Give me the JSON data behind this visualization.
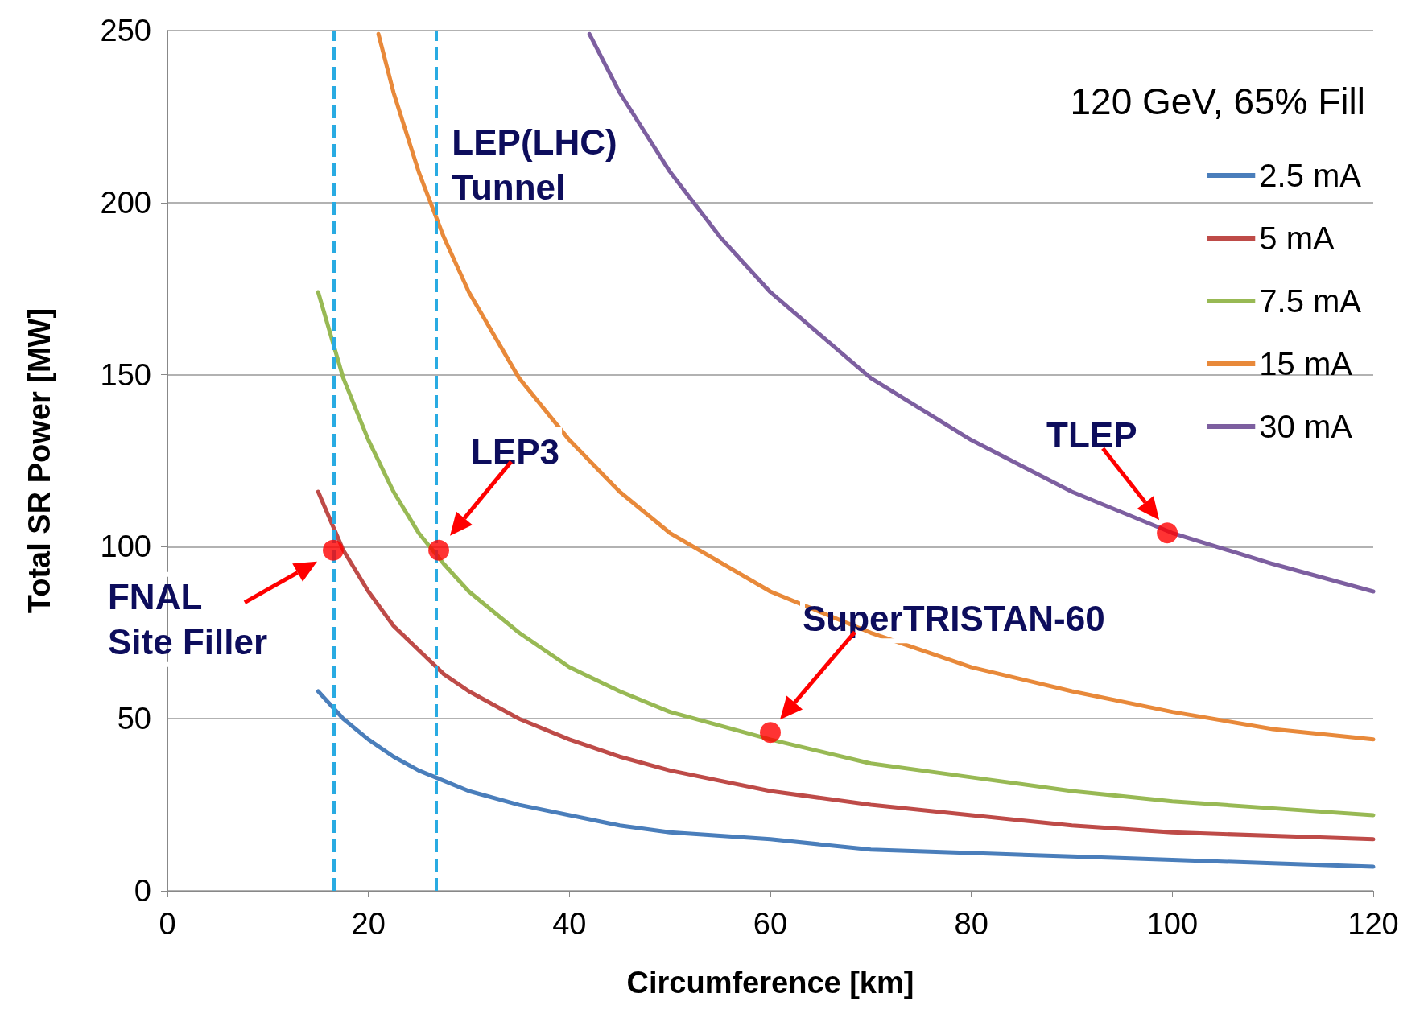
{
  "chart_data": {
    "type": "line",
    "xlabel": "Circumference [km]",
    "ylabel": "Total SR Power [MW]",
    "legend_title": "120 GeV, 65% Fill",
    "xlim": [
      0,
      120
    ],
    "xticks": [
      0,
      20,
      40,
      60,
      80,
      100,
      120
    ],
    "ylim": [
      0,
      250
    ],
    "yticks": [
      0,
      50,
      100,
      150,
      200,
      250
    ],
    "grid": "y",
    "legend": "top right",
    "marker": "none",
    "line_style": "solid",
    "series": [
      {
        "name": "2.5 mA",
        "color": "#4a7ebb",
        "x": [
          15,
          17.5,
          20,
          22.5,
          25,
          27.5,
          30,
          35,
          40,
          45,
          50,
          60,
          70,
          80,
          90,
          100,
          110,
          120
        ],
        "values": [
          58,
          50,
          44,
          39,
          35,
          32,
          29,
          25,
          22,
          19,
          17,
          15,
          12,
          11,
          10,
          9,
          8,
          7
        ]
      },
      {
        "name": "5 mA",
        "color": "#be4b48",
        "x": [
          15,
          17.5,
          20,
          22.5,
          25,
          27.5,
          30,
          35,
          40,
          45,
          50,
          60,
          70,
          80,
          90,
          100,
          110,
          120
        ],
        "values": [
          116,
          99,
          87,
          77,
          70,
          63,
          58,
          50,
          44,
          39,
          35,
          29,
          25,
          22,
          19,
          17,
          16,
          15
        ]
      },
      {
        "name": "7.5 mA",
        "color": "#98b954",
        "x": [
          15,
          17.5,
          20,
          22.5,
          25,
          27.5,
          30,
          35,
          40,
          45,
          50,
          60,
          70,
          80,
          90,
          100,
          110,
          120
        ],
        "values": [
          174,
          149,
          131,
          116,
          104,
          95,
          87,
          75,
          65,
          58,
          52,
          44,
          37,
          33,
          29,
          26,
          24,
          22
        ]
      },
      {
        "name": "15 mA",
        "color": "#e8893a",
        "x": [
          21,
          22.5,
          25,
          27.5,
          30,
          35,
          40,
          45,
          50,
          60,
          70,
          80,
          90,
          100,
          110,
          120
        ],
        "values": [
          249,
          232,
          209,
          190,
          174,
          149,
          131,
          116,
          104,
          87,
          75,
          65,
          58,
          52,
          47,
          44
        ]
      },
      {
        "name": "30 mA",
        "color": "#7d5fa0",
        "x": [
          42,
          45,
          50,
          55,
          60,
          70,
          80,
          90,
          100,
          110,
          120
        ],
        "values": [
          249,
          232,
          209,
          190,
          174,
          149,
          131,
          116,
          104,
          95,
          87
        ]
      },
      {
        "type": "scatter",
        "color": "#ff0000",
        "marker": "circle",
        "x": [
          16.5,
          27,
          60,
          99.5
        ],
        "values": [
          99,
          99,
          46,
          104
        ]
      }
    ],
    "ref_lines": [
      {
        "axis": "x",
        "value": 16.6,
        "color": "#29abe2",
        "line_style": "dashed"
      },
      {
        "axis": "x",
        "value": 26.7,
        "label": "LEP(LHC)\nTunnel",
        "color": "#29abe2",
        "line_style": "dashed"
      }
    ],
    "annotations": [
      {
        "text": "FNAL\nSite Filler",
        "x": 16.5,
        "y": 99
      },
      {
        "text": "LEP3",
        "x": 27,
        "y": 99
      },
      {
        "text": "SuperTRISTAN-60",
        "x": 60,
        "y": 46
      },
      {
        "text": "TLEP",
        "x": 99.5,
        "y": 104
      }
    ]
  }
}
